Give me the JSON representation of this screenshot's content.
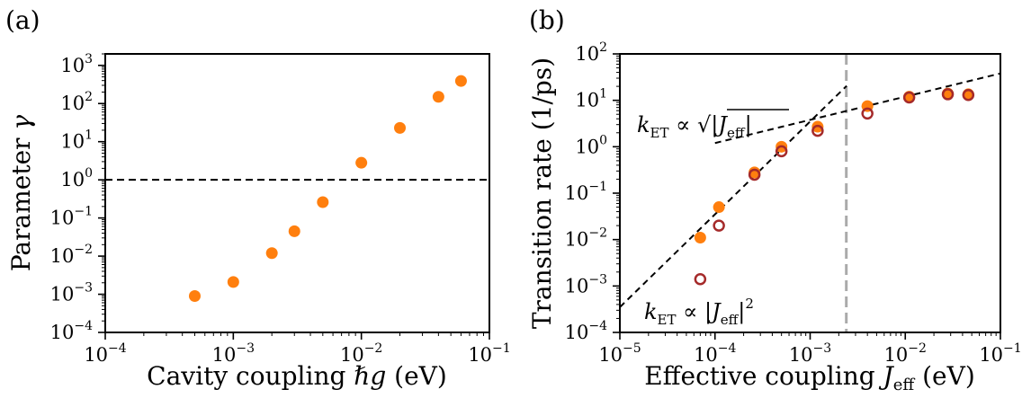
{
  "chart_data": [
    {
      "type": "scatter",
      "panel_label": "(a)",
      "xlabel": "Cavity coupling ℏg (eV)",
      "ylabel": "Parameter γ",
      "x_scale": "log",
      "y_scale": "log",
      "xlim": [
        0.0001,
        0.1
      ],
      "ylim": [
        0.0001,
        2000
      ],
      "x_ticks": [
        -4,
        -3,
        -2,
        -1
      ],
      "y_ticks": [
        -4,
        -3,
        -2,
        -1,
        0,
        1,
        2,
        3
      ],
      "reference_line": {
        "axis": "y",
        "value": 1,
        "style": "dashed",
        "color": "#000000"
      },
      "series": [
        {
          "color": "#ff7f0e",
          "marker": "filled-circle",
          "x": [
            0.0005,
            0.001,
            0.002,
            0.003,
            0.005,
            0.01,
            0.02,
            0.04,
            0.06
          ],
          "y": [
            0.0009,
            0.0021,
            0.012,
            0.045,
            0.26,
            2.8,
            23,
            150,
            390
          ]
        }
      ],
      "grid": false
    },
    {
      "type": "scatter",
      "panel_label": "(b)",
      "xlabel": "Effective coupling J_eff (eV)",
      "ylabel": "Transition rate (1/ps)",
      "x_scale": "log",
      "y_scale": "log",
      "xlim": [
        1e-05,
        0.1
      ],
      "ylim": [
        0.0001,
        100
      ],
      "x_ticks": [
        -5,
        -4,
        -3,
        -2,
        -1
      ],
      "y_ticks": [
        -4,
        -3,
        -2,
        -1,
        0,
        1,
        2
      ],
      "vertical_line": {
        "value": 0.0024,
        "style": "dashed",
        "color": "#aaaaaa"
      },
      "fit_lines": [
        {
          "label_parts": [
            "k",
            "ET",
            " ∝ |J",
            "eff",
            "|",
            "2"
          ],
          "slope": 2,
          "x_range": [
            1e-05,
            0.00242
          ],
          "y_at_x_start": 0.00035
        },
        {
          "label_parts": [
            "k",
            "ET",
            " ∝ √|J",
            "eff",
            "|"
          ],
          "slope": 0.5,
          "x_range": [
            0.0001,
            0.1
          ],
          "y_at_x_start": 1.2
        }
      ],
      "series": [
        {
          "color": "#ff7f0e",
          "marker": "filled-circle",
          "x": [
            7e-05,
            0.00011,
            0.00026,
            0.0005,
            0.0012,
            0.004,
            0.011,
            0.028,
            0.046
          ],
          "y": [
            0.011,
            0.05,
            0.28,
            1.0,
            2.7,
            7.5,
            12,
            14,
            13.5
          ]
        },
        {
          "color": "#a52a2a",
          "marker": "open-circle",
          "x": [
            7e-05,
            0.00011,
            0.00026,
            0.0005,
            0.0012,
            0.004,
            0.011,
            0.028,
            0.046
          ],
          "y": [
            0.0014,
            0.02,
            0.25,
            0.8,
            2.2,
            5.2,
            11.5,
            13.5,
            13
          ]
        }
      ],
      "grid": false
    }
  ]
}
